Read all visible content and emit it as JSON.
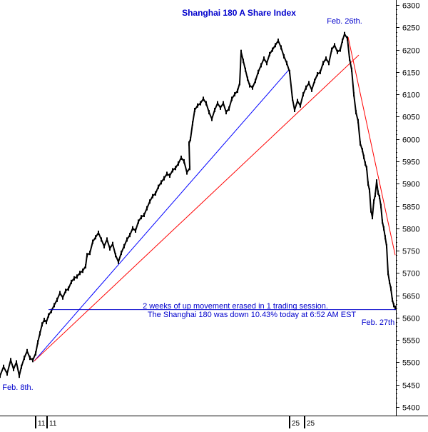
{
  "chart_data": {
    "type": "line",
    "title": "Shanghai 180 A Share Index",
    "xlabel": "",
    "ylabel": "",
    "ylim": [
      5375,
      6300
    ],
    "y_ticks": [
      5400,
      5450,
      5500,
      5550,
      5600,
      5650,
      5700,
      5750,
      5800,
      5850,
      5900,
      5950,
      6000,
      6050,
      6100,
      6150,
      6200,
      6250,
      6300
    ],
    "x_range": [
      0,
      555
    ],
    "x_tick_labels": [
      {
        "x": 60,
        "label": "11"
      },
      {
        "x": 76,
        "label": "11"
      },
      {
        "x": 416,
        "label": "25"
      },
      {
        "x": 437,
        "label": "25"
      }
    ],
    "grid": false,
    "series": [
      {
        "values": [
          [
            0,
            5470
          ],
          [
            5,
            5490
          ],
          [
            10,
            5475
          ],
          [
            15,
            5505
          ],
          [
            19,
            5485
          ],
          [
            23,
            5500
          ],
          [
            27,
            5470
          ],
          [
            30,
            5490
          ],
          [
            34,
            5510
          ],
          [
            38,
            5525
          ],
          [
            42,
            5510
          ],
          [
            46,
            5505
          ],
          [
            50,
            5520
          ],
          [
            53,
            5545
          ],
          [
            56,
            5565
          ],
          [
            59,
            5585
          ],
          [
            62,
            5595
          ],
          [
            65,
            5590
          ],
          [
            68,
            5605
          ],
          [
            72,
            5615
          ],
          [
            76,
            5628
          ],
          [
            80,
            5640
          ],
          [
            84,
            5655
          ],
          [
            88,
            5645
          ],
          [
            92,
            5660
          ],
          [
            96,
            5665
          ],
          [
            100,
            5680
          ],
          [
            104,
            5688
          ],
          [
            108,
            5692
          ],
          [
            112,
            5700
          ],
          [
            116,
            5705
          ],
          [
            120,
            5715
          ],
          [
            122,
            5740
          ],
          [
            126,
            5745
          ],
          [
            130,
            5770
          ],
          [
            134,
            5780
          ],
          [
            138,
            5790
          ],
          [
            142,
            5775
          ],
          [
            146,
            5760
          ],
          [
            150,
            5775
          ],
          [
            154,
            5755
          ],
          [
            158,
            5765
          ],
          [
            162,
            5740
          ],
          [
            166,
            5725
          ],
          [
            170,
            5745
          ],
          [
            174,
            5760
          ],
          [
            178,
            5775
          ],
          [
            182,
            5785
          ],
          [
            186,
            5800
          ],
          [
            190,
            5795
          ],
          [
            194,
            5815
          ],
          [
            198,
            5825
          ],
          [
            202,
            5830
          ],
          [
            206,
            5845
          ],
          [
            210,
            5860
          ],
          [
            214,
            5872
          ],
          [
            218,
            5878
          ],
          [
            222,
            5893
          ],
          [
            226,
            5903
          ],
          [
            230,
            5912
          ],
          [
            234,
            5922
          ],
          [
            238,
            5918
          ],
          [
            242,
            5930
          ],
          [
            246,
            5935
          ],
          [
            250,
            5945
          ],
          [
            254,
            5958
          ],
          [
            258,
            5950
          ],
          [
            262,
            5925
          ],
          [
            266,
            5935
          ],
          [
            265,
            5990
          ],
          [
            267,
            6000
          ],
          [
            270,
            6035
          ],
          [
            273,
            6065
          ],
          [
            277,
            6075
          ],
          [
            281,
            6080
          ],
          [
            285,
            6090
          ],
          [
            289,
            6080
          ],
          [
            293,
            6060
          ],
          [
            297,
            6045
          ],
          [
            301,
            6065
          ],
          [
            305,
            6080
          ],
          [
            309,
            6070
          ],
          [
            313,
            6080
          ],
          [
            317,
            6060
          ],
          [
            321,
            6068
          ],
          [
            325,
            6090
          ],
          [
            329,
            6100
          ],
          [
            333,
            6108
          ],
          [
            336,
            6125
          ],
          [
            338,
            6195
          ],
          [
            341,
            6175
          ],
          [
            344,
            6155
          ],
          [
            347,
            6135
          ],
          [
            350,
            6120
          ],
          [
            354,
            6115
          ],
          [
            358,
            6130
          ],
          [
            362,
            6150
          ],
          [
            366,
            6165
          ],
          [
            370,
            6180
          ],
          [
            374,
            6170
          ],
          [
            378,
            6190
          ],
          [
            382,
            6200
          ],
          [
            386,
            6210
          ],
          [
            390,
            6220
          ],
          [
            394,
            6205
          ],
          [
            398,
            6185
          ],
          [
            402,
            6170
          ],
          [
            406,
            6150
          ],
          [
            410,
            6090
          ],
          [
            413,
            6065
          ],
          [
            417,
            6085
          ],
          [
            421,
            6075
          ],
          [
            425,
            6100
          ],
          [
            429,
            6115
          ],
          [
            433,
            6125
          ],
          [
            437,
            6110
          ],
          [
            441,
            6130
          ],
          [
            445,
            6145
          ],
          [
            449,
            6150
          ],
          [
            453,
            6170
          ],
          [
            457,
            6180
          ],
          [
            461,
            6170
          ],
          [
            465,
            6200
          ],
          [
            469,
            6210
          ],
          [
            473,
            6195
          ],
          [
            477,
            6200
          ],
          [
            480,
            6220
          ],
          [
            483,
            6235
          ],
          [
            487,
            6225
          ],
          [
            490,
            6180
          ],
          [
            493,
            6155
          ],
          [
            496,
            6100
          ],
          [
            499,
            6060
          ],
          [
            502,
            6040
          ],
          [
            505,
            5990
          ],
          [
            508,
            5975
          ],
          [
            510,
            5960
          ],
          [
            512,
            5945
          ],
          [
            514,
            5935
          ],
          [
            516,
            5900
          ],
          [
            518,
            5885
          ],
          [
            520,
            5840
          ],
          [
            522,
            5825
          ],
          [
            524,
            5860
          ],
          [
            526,
            5875
          ],
          [
            528,
            5905
          ],
          [
            530,
            5880
          ],
          [
            532,
            5870
          ],
          [
            534,
            5850
          ],
          [
            536,
            5815
          ],
          [
            538,
            5800
          ],
          [
            540,
            5780
          ],
          [
            542,
            5760
          ],
          [
            544,
            5700
          ],
          [
            546,
            5680
          ],
          [
            548,
            5665
          ],
          [
            550,
            5640
          ],
          [
            552,
            5628
          ],
          [
            554,
            5622
          ]
        ]
      }
    ],
    "trend_lines": [
      {
        "color": "#0000ff",
        "from": [
          48,
          5503
        ],
        "to": [
          405,
          6155
        ]
      },
      {
        "color": "#ff0000",
        "from": [
          48,
          5503
        ],
        "to": [
          503,
          6188
        ]
      },
      {
        "color": "#ff0000",
        "from": [
          488,
          6228
        ],
        "to": [
          554,
          5740
        ]
      }
    ],
    "hline": {
      "color": "#0000cc",
      "y": 5618,
      "x_from": 68,
      "x_to": 556
    },
    "annotations": [
      {
        "text": "Feb. 26th.",
        "x": 483,
        "y": 6265
      },
      {
        "text": "2 weeks of up movement erased in 1 trading session.",
        "x": 330,
        "y": 5627
      },
      {
        "text": "The Shanghai 180 was down 10.43% today at 6:52 AM EST",
        "x": 353,
        "y": 5608
      },
      {
        "text": "Feb. 27th",
        "x": 530,
        "y": 5590
      },
      {
        "text": "Feb. 8th.",
        "x": 25,
        "y": 5445
      }
    ],
    "colors": {
      "price": "#000000",
      "title": "#0000cc",
      "annotation": "#0000cc",
      "background": "#ffffff"
    }
  }
}
